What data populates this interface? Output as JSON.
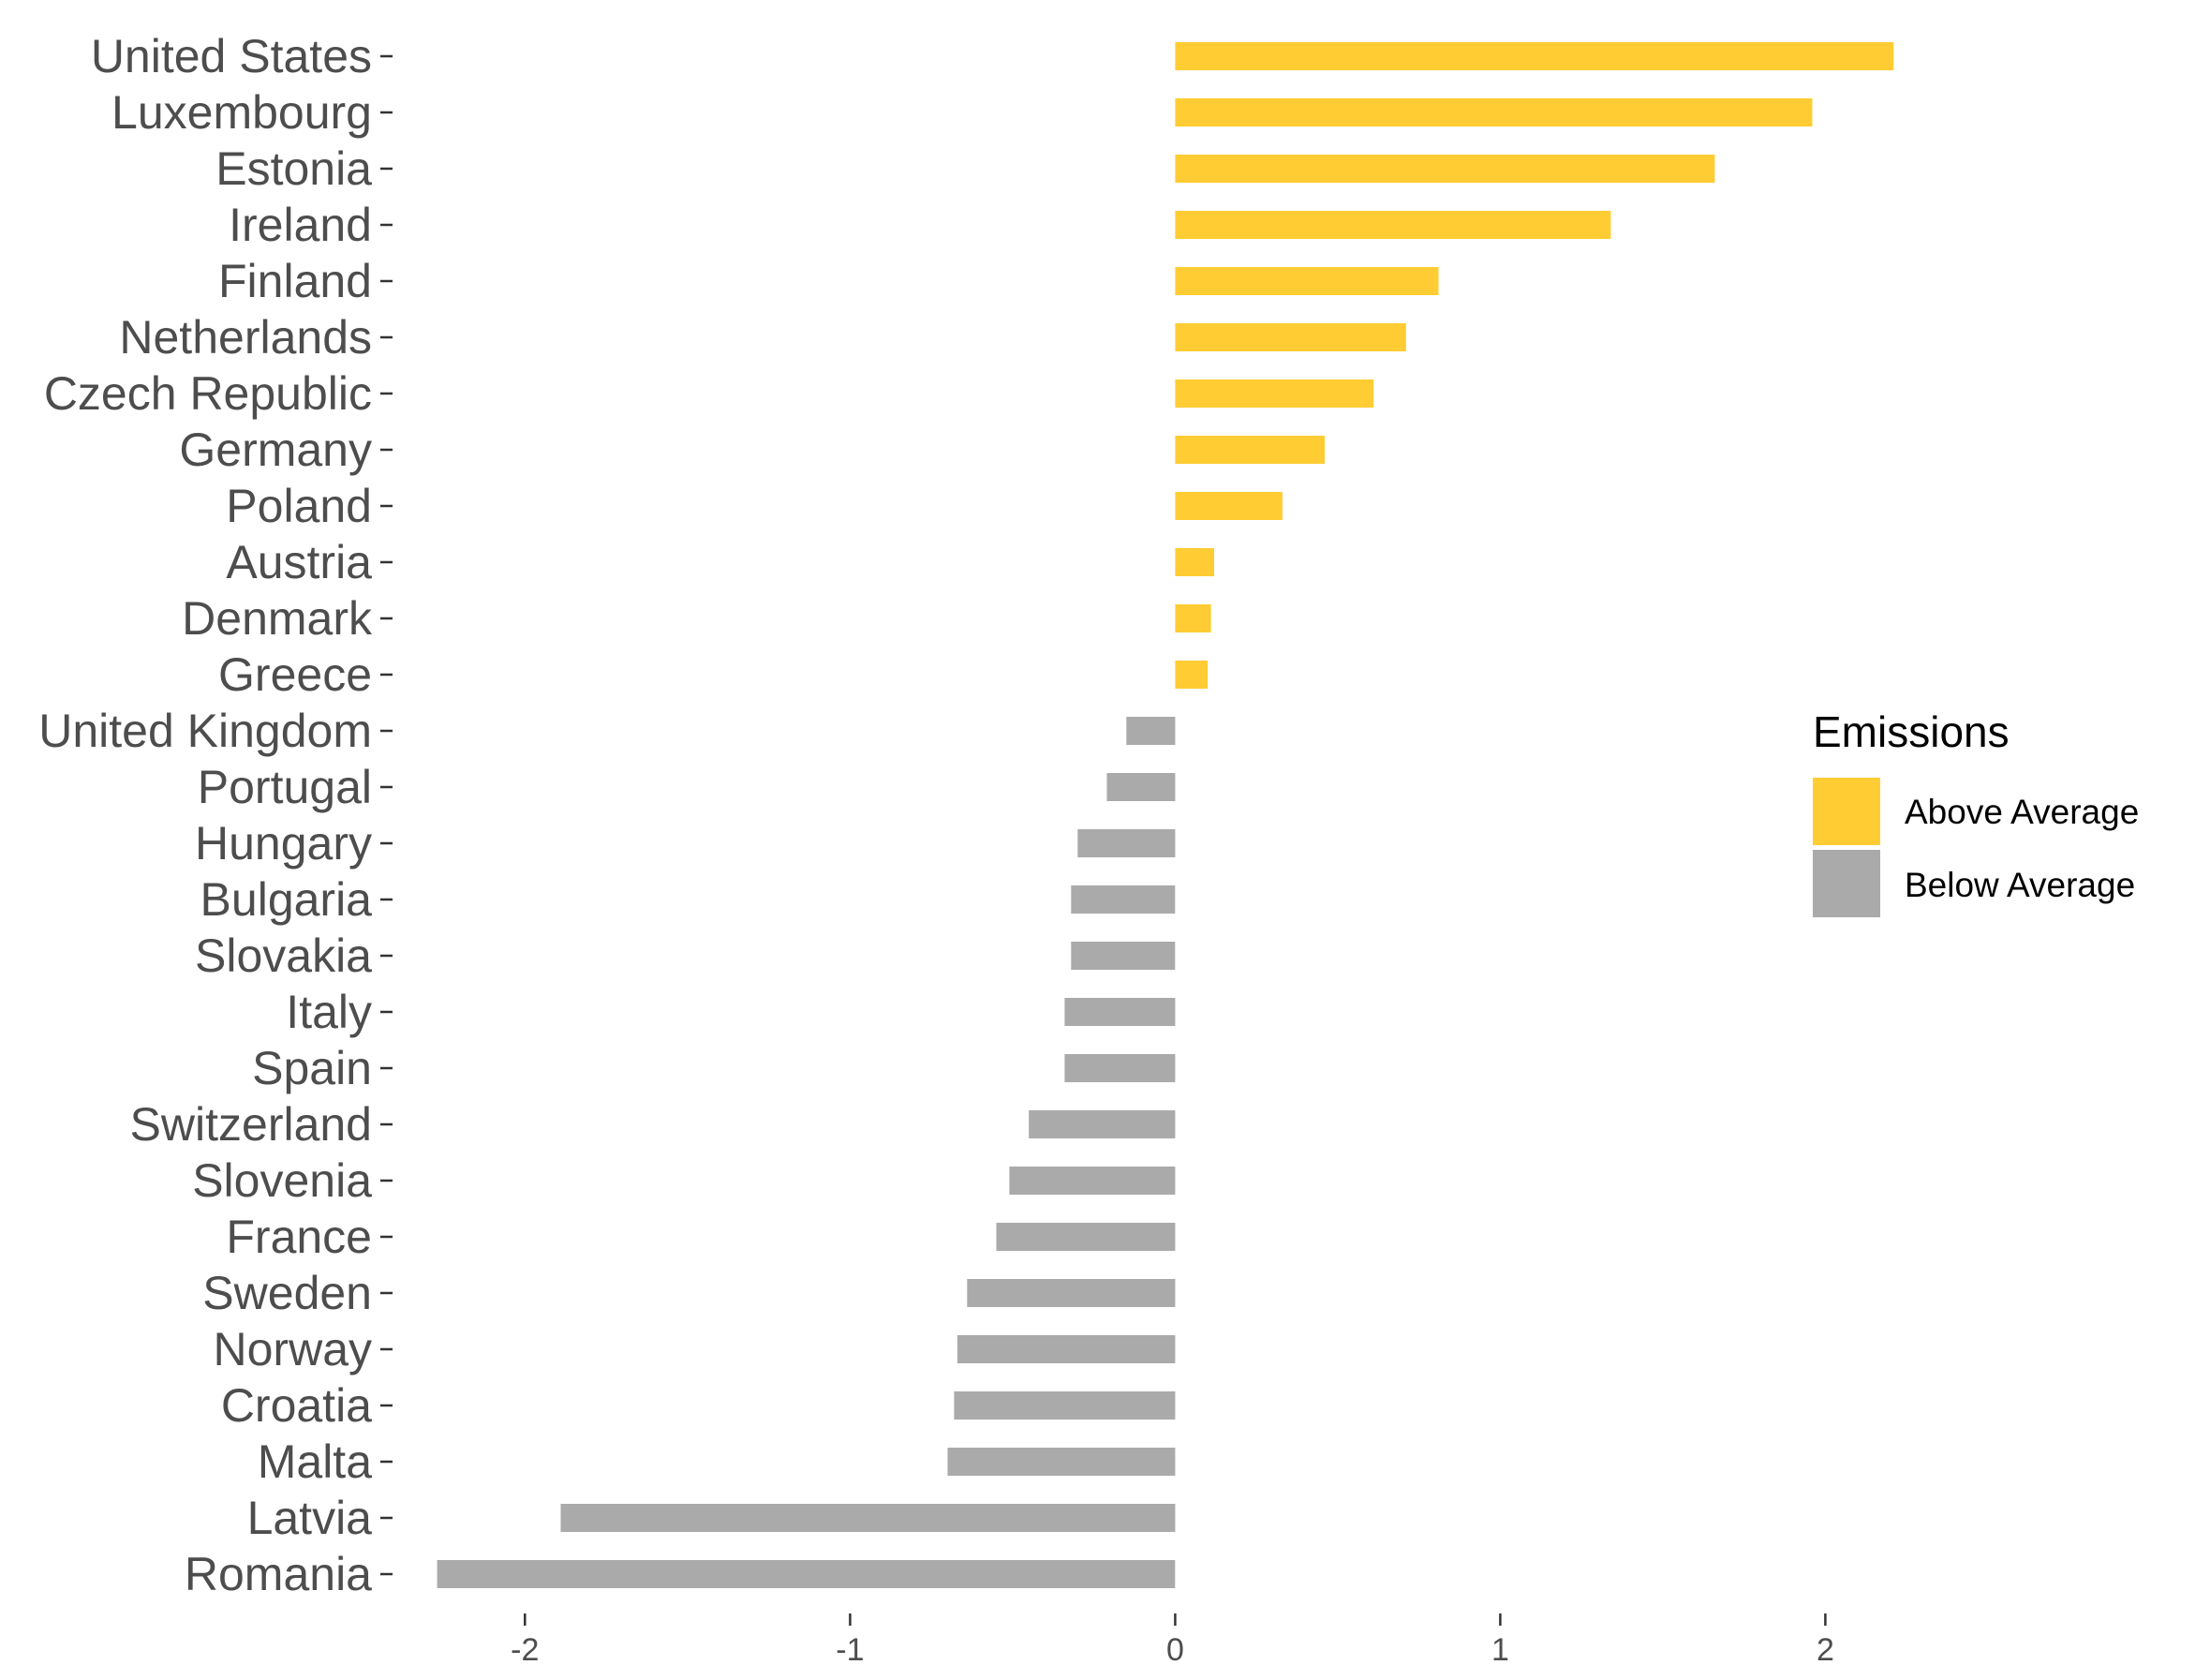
{
  "chart_data": {
    "type": "bar",
    "orientation": "horizontal",
    "categories": [
      "United States",
      "Luxembourg",
      "Estonia",
      "Ireland",
      "Finland",
      "Netherlands",
      "Czech Republic",
      "Germany",
      "Poland",
      "Austria",
      "Denmark",
      "Greece",
      "United Kingdom",
      "Portugal",
      "Hungary",
      "Bulgaria",
      "Slovakia",
      "Italy",
      "Spain",
      "Switzerland",
      "Slovenia",
      "France",
      "Sweden",
      "Norway",
      "Croatia",
      "Malta",
      "Latvia",
      "Romania"
    ],
    "values": [
      2.21,
      1.96,
      1.66,
      1.34,
      0.81,
      0.71,
      0.61,
      0.46,
      0.33,
      0.12,
      0.11,
      0.1,
      -0.15,
      -0.21,
      -0.3,
      -0.32,
      -0.32,
      -0.34,
      -0.34,
      -0.45,
      -0.51,
      -0.55,
      -0.64,
      -0.67,
      -0.68,
      -0.7,
      -1.89,
      -2.27
    ],
    "groups": [
      "Above Average",
      "Above Average",
      "Above Average",
      "Above Average",
      "Above Average",
      "Above Average",
      "Above Average",
      "Above Average",
      "Above Average",
      "Above Average",
      "Above Average",
      "Above Average",
      "Below Average",
      "Below Average",
      "Below Average",
      "Below Average",
      "Below Average",
      "Below Average",
      "Below Average",
      "Below Average",
      "Below Average",
      "Below Average",
      "Below Average",
      "Below Average",
      "Below Average",
      "Below Average",
      "Below Average",
      "Below Average"
    ],
    "xticks": [
      -2,
      -1,
      0,
      1,
      2
    ],
    "xtick_labels": [
      "-2",
      "-1",
      "0",
      "1",
      "2"
    ],
    "xlim": [
      -2.39,
      2.97
    ],
    "title": "",
    "xlabel": "",
    "ylabel": "",
    "grid": false,
    "legend": {
      "title": "Emissions",
      "position": "right",
      "entries": [
        {
          "label": "Above Average",
          "color": "#FFCC33"
        },
        {
          "label": "Below Average",
          "color": "#AAAAAA"
        }
      ]
    },
    "colors": {
      "Above Average": "#FFCC33",
      "Below Average": "#AAAAAA",
      "text": "#4D4D4D",
      "tick": "#333333"
    }
  }
}
